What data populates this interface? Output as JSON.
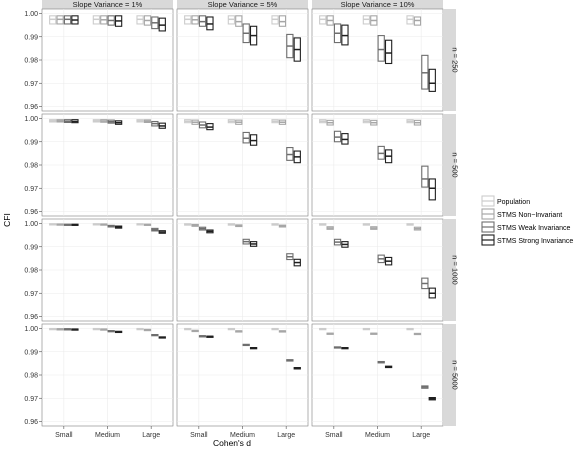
{
  "chart_data": {
    "type": "boxplot",
    "col_strips": [
      "Slope Variance = 1%",
      "Slope Variance = 5%",
      "Slope Variance = 10%"
    ],
    "row_strips": [
      "n = 250",
      "n = 500",
      "n = 1000",
      "n = 5000"
    ],
    "categories": [
      "Small",
      "Medium",
      "Large"
    ],
    "xlabel": "Cohen's d",
    "ylabel": "CFI",
    "ylim": [
      0.96,
      1.0
    ],
    "y_ticks": [
      "0.96",
      "0.97",
      "0.98",
      "0.99",
      "1.00"
    ],
    "grid": true,
    "legend_position": "right",
    "series": [
      {
        "name": "Population",
        "color": "#cccccc"
      },
      {
        "name": "STMS Non−Invariant",
        "color": "#a6a6a6"
      },
      {
        "name": "STMS Weak Invariance",
        "color": "#6e6e6e"
      },
      {
        "name": "STMS Strong Invariance",
        "color": "#1f1f1f"
      }
    ],
    "boxes": [
      [
        [
          [
            [
              0.9955,
              0.9975,
              0.999
            ],
            [
              0.9955,
              0.9975,
              0.999
            ],
            [
              0.9955,
              0.9975,
              0.999
            ],
            [
              0.9955,
              0.9972,
              0.999
            ]
          ],
          [
            [
              0.9955,
              0.9975,
              0.999
            ],
            [
              0.9955,
              0.9973,
              0.999
            ],
            [
              0.995,
              0.997,
              0.999
            ],
            [
              0.9945,
              0.9968,
              0.999
            ]
          ],
          [
            [
              0.9955,
              0.9975,
              0.999
            ],
            [
              0.995,
              0.997,
              0.999
            ],
            [
              0.9935,
              0.996,
              0.9985
            ],
            [
              0.9925,
              0.995,
              0.998
            ]
          ]
        ],
        [
          [
            [
              0.9985,
              0.999,
              0.9995
            ],
            [
              0.9985,
              0.999,
              0.9995
            ],
            [
              0.9983,
              0.9988,
              0.9995
            ],
            [
              0.9982,
              0.9987,
              0.9995
            ]
          ],
          [
            [
              0.9985,
              0.999,
              0.9995
            ],
            [
              0.9984,
              0.9989,
              0.9995
            ],
            [
              0.998,
              0.9986,
              0.9993
            ],
            [
              0.9975,
              0.9982,
              0.999
            ]
          ],
          [
            [
              0.9985,
              0.999,
              0.9995
            ],
            [
              0.9983,
              0.9988,
              0.9994
            ],
            [
              0.9968,
              0.9978,
              0.9987
            ],
            [
              0.9958,
              0.9968,
              0.998
            ]
          ]
        ],
        [
          [
            [
              0.9995,
              0.9997,
              0.9999
            ],
            [
              0.9994,
              0.9996,
              0.9998
            ],
            [
              0.9993,
              0.9995,
              0.9997
            ],
            [
              0.9992,
              0.9994,
              0.9997
            ]
          ],
          [
            [
              0.9995,
              0.9997,
              0.9999
            ],
            [
              0.9994,
              0.9996,
              0.9998
            ],
            [
              0.9985,
              0.9988,
              0.9992
            ],
            [
              0.998,
              0.9984,
              0.9989
            ]
          ],
          [
            [
              0.9995,
              0.9997,
              0.9999
            ],
            [
              0.9992,
              0.9995,
              0.9997
            ],
            [
              0.9968,
              0.9973,
              0.9979
            ],
            [
              0.9958,
              0.9963,
              0.9969
            ]
          ]
        ],
        [
          [
            [
              0.9998,
              0.9999,
              1.0
            ],
            [
              0.9997,
              0.9998,
              0.9999
            ],
            [
              0.9997,
              0.9998,
              0.9999
            ],
            [
              0.9996,
              0.9997,
              0.9998
            ]
          ],
          [
            [
              0.9998,
              0.9999,
              1.0
            ],
            [
              0.9996,
              0.9997,
              0.9998
            ],
            [
              0.9987,
              0.9989,
              0.9991
            ],
            [
              0.9984,
              0.9986,
              0.9988
            ]
          ],
          [
            [
              0.9998,
              0.9999,
              1.0
            ],
            [
              0.9994,
              0.9995,
              0.9996
            ],
            [
              0.997,
              0.9972,
              0.9974
            ],
            [
              0.996,
              0.9962,
              0.9964
            ]
          ]
        ]
      ],
      [
        [
          [
            [
              0.9955,
              0.9975,
              0.999
            ],
            [
              0.9955,
              0.9973,
              0.999
            ],
            [
              0.9945,
              0.9965,
              0.999
            ],
            [
              0.993,
              0.9955,
              0.9985
            ]
          ],
          [
            [
              0.9955,
              0.9975,
              0.999
            ],
            [
              0.9945,
              0.9965,
              0.999
            ],
            [
              0.9875,
              0.9915,
              0.9955
            ],
            [
              0.9865,
              0.9905,
              0.9945
            ]
          ],
          [
            [
              0.9955,
              0.9975,
              0.999
            ],
            [
              0.9945,
              0.9965,
              0.999
            ],
            [
              0.981,
              0.986,
              0.991
            ],
            [
              0.9795,
              0.9845,
              0.9895
            ]
          ]
        ],
        [
          [
            [
              0.9982,
              0.9988,
              0.9995
            ],
            [
              0.9975,
              0.9984,
              0.9993
            ],
            [
              0.996,
              0.9972,
              0.9985
            ],
            [
              0.9952,
              0.9963,
              0.9978
            ]
          ],
          [
            [
              0.9982,
              0.9988,
              0.9995
            ],
            [
              0.9975,
              0.9984,
              0.9993
            ],
            [
              0.9895,
              0.9915,
              0.994
            ],
            [
              0.9885,
              0.9905,
              0.993
            ]
          ],
          [
            [
              0.9982,
              0.9988,
              0.9995
            ],
            [
              0.9975,
              0.9984,
              0.9993
            ],
            [
              0.982,
              0.9845,
              0.9875
            ],
            [
              0.981,
              0.9835,
              0.986
            ]
          ]
        ],
        [
          [
            [
              0.9993,
              0.9996,
              0.9999
            ],
            [
              0.9988,
              0.9992,
              0.9996
            ],
            [
              0.9972,
              0.9978,
              0.9984
            ],
            [
              0.996,
              0.9966,
              0.9972
            ]
          ],
          [
            [
              0.9993,
              0.9996,
              0.9999
            ],
            [
              0.9987,
              0.999,
              0.9994
            ],
            [
              0.9912,
              0.9922,
              0.9932
            ],
            [
              0.9902,
              0.9912,
              0.9922
            ]
          ],
          [
            [
              0.9993,
              0.9996,
              0.9999
            ],
            [
              0.9985,
              0.9989,
              0.9993
            ],
            [
              0.9845,
              0.9857,
              0.987
            ],
            [
              0.9818,
              0.9832,
              0.9846
            ]
          ]
        ],
        [
          [
            [
              0.9998,
              0.9999,
              1.0
            ],
            [
              0.999,
              0.9991,
              0.9992
            ],
            [
              0.9967,
              0.9968,
              0.9969
            ],
            [
              0.9965,
              0.9966,
              0.9967
            ]
          ],
          [
            [
              0.9998,
              0.9999,
              1.0
            ],
            [
              0.9988,
              0.9989,
              0.999
            ],
            [
              0.9928,
              0.993,
              0.9932
            ],
            [
              0.9914,
              0.9916,
              0.9918
            ]
          ],
          [
            [
              0.9998,
              0.9999,
              1.0
            ],
            [
              0.9988,
              0.9989,
              0.999
            ],
            [
              0.986,
              0.9862,
              0.9866
            ],
            [
              0.9826,
              0.9828,
              0.9832
            ]
          ]
        ]
      ],
      [
        [
          [
            [
              0.9955,
              0.9975,
              0.999
            ],
            [
              0.995,
              0.997,
              0.999
            ],
            [
              0.9875,
              0.9915,
              0.9955
            ],
            [
              0.9865,
              0.9905,
              0.995
            ]
          ],
          [
            [
              0.9955,
              0.9975,
              0.999
            ],
            [
              0.995,
              0.997,
              0.999
            ],
            [
              0.9795,
              0.9845,
              0.9905
            ],
            [
              0.9785,
              0.983,
              0.9885
            ]
          ],
          [
            [
              0.9955,
              0.9975,
              0.999
            ],
            [
              0.995,
              0.997,
              0.9985
            ],
            [
              0.9675,
              0.9745,
              0.982
            ],
            [
              0.9665,
              0.97,
              0.976
            ]
          ]
        ],
        [
          [
            [
              0.9982,
              0.9988,
              0.9995
            ],
            [
              0.9972,
              0.9982,
              0.9992
            ],
            [
              0.99,
              0.992,
              0.9945
            ],
            [
              0.989,
              0.991,
              0.9935
            ]
          ],
          [
            [
              0.9982,
              0.9988,
              0.9995
            ],
            [
              0.9972,
              0.9982,
              0.9992
            ],
            [
              0.9825,
              0.985,
              0.988
            ],
            [
              0.981,
              0.9838,
              0.9865
            ]
          ],
          [
            [
              0.9982,
              0.9988,
              0.9995
            ],
            [
              0.9972,
              0.9982,
              0.9992
            ],
            [
              0.9705,
              0.974,
              0.9795
            ],
            [
              0.965,
              0.97,
              0.974
            ]
          ]
        ],
        [
          [
            [
              0.9993,
              0.9996,
              0.9999
            ],
            [
              0.9975,
              0.998,
              0.9986
            ],
            [
              0.9908,
              0.992,
              0.9932
            ],
            [
              0.9898,
              0.991,
              0.9922
            ]
          ],
          [
            [
              0.9993,
              0.9996,
              0.9999
            ],
            [
              0.9975,
              0.998,
              0.9986
            ],
            [
              0.9832,
              0.9848,
              0.9864
            ],
            [
              0.9822,
              0.9838,
              0.9854
            ]
          ],
          [
            [
              0.9993,
              0.9996,
              0.9999
            ],
            [
              0.9972,
              0.9978,
              0.9984
            ],
            [
              0.972,
              0.9742,
              0.9765
            ],
            [
              0.968,
              0.97,
              0.9722
            ]
          ]
        ],
        [
          [
            [
              0.9998,
              0.9999,
              1.0
            ],
            [
              0.9976,
              0.9978,
              0.998
            ],
            [
              0.9916,
              0.9918,
              0.9921
            ],
            [
              0.9913,
              0.9915,
              0.9918
            ]
          ],
          [
            [
              0.9998,
              0.9999,
              1.0
            ],
            [
              0.9976,
              0.9978,
              0.998
            ],
            [
              0.9852,
              0.9855,
              0.9858
            ],
            [
              0.9832,
              0.9835,
              0.9838
            ]
          ],
          [
            [
              0.9998,
              0.9999,
              1.0
            ],
            [
              0.9975,
              0.9977,
              0.9979
            ],
            [
              0.9743,
              0.9748,
              0.9753
            ],
            [
              0.9693,
              0.9698,
              0.9703
            ]
          ]
        ]
      ]
    ]
  }
}
